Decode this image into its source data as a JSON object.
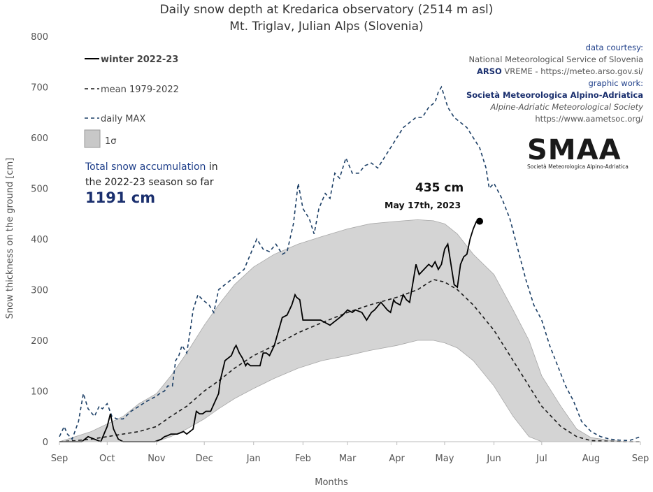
{
  "title_line1": "Daily snow depth at Kredarica observatory (2514 m asl)",
  "title_line2": "Mt. Triglav, Julian Alps  (Slovenia)",
  "credits": {
    "line1": "data courtesy:",
    "line2": "National Meteorological Service of Slovenia",
    "line3_bold": "ARSO",
    "line3_rest": " VREME - https://meteo.arso.gov.si/",
    "line4": "graphic work:",
    "line5": "Società Meteorologica Alpino-Adriatica",
    "line6": "Alpine-Adriatic Meteorological Society",
    "line7": "https://www.aametsoc.org/"
  },
  "logo": {
    "text": "SMAA",
    "subtitle": "Società Meteorologica Alpino-Adriatica"
  },
  "total": {
    "line1_blue": "Total snow accumulation",
    "line1_rest": " in",
    "line2": "the 2022-23 season so far",
    "value": "1191 cm"
  },
  "annotation": {
    "value": "435 cm",
    "date": "May 17th, 2023"
  },
  "colors": {
    "winter": "#000000",
    "mean": "#1a1a1a",
    "max": "#1c3f66",
    "band": "#d4d4d4",
    "band_stroke": "#a8a8a8"
  },
  "chart_data": {
    "type": "line",
    "title": "Daily snow depth at Kredarica observatory (2514 m asl)",
    "subtitle": "Mt. Triglav, Julian Alps  (Slovenia)",
    "xlabel": "Months",
    "ylabel": "Snow thickness on the ground [cm]",
    "ylim": [
      0,
      800
    ],
    "yticks": [
      0,
      100,
      200,
      300,
      400,
      500,
      600,
      700,
      800
    ],
    "xlim": [
      0,
      365
    ],
    "months": [
      {
        "label": "Sep",
        "day": 0
      },
      {
        "label": "Oct",
        "day": 30
      },
      {
        "label": "Nov",
        "day": 61
      },
      {
        "label": "Dec",
        "day": 91
      },
      {
        "label": "Jan",
        "day": 122
      },
      {
        "label": "Feb",
        "day": 153
      },
      {
        "label": "Mar",
        "day": 181
      },
      {
        "label": "Apr",
        "day": 212
      },
      {
        "label": "May",
        "day": 242
      },
      {
        "label": "Jun",
        "day": 273
      },
      {
        "label": "Jul",
        "day": 303
      },
      {
        "label": "Aug",
        "day": 334
      },
      {
        "label": "Sep",
        "day": 365
      }
    ],
    "legend": [
      {
        "label": "winter 2022-23",
        "style": "solid"
      },
      {
        "label": "mean 1979-2022",
        "style": "dashed"
      },
      {
        "label": "daily MAX",
        "style": "dashed"
      },
      {
        "label": "1σ",
        "style": "band"
      }
    ],
    "series": [
      {
        "name": "winter 2022-23",
        "x": [
          0,
          10,
          14,
          18,
          22,
          26,
          28,
          30,
          32,
          34,
          37,
          40,
          45,
          50,
          55,
          60,
          64,
          66,
          68,
          70,
          74,
          78,
          80,
          84,
          86,
          88,
          90,
          92,
          95,
          100,
          101,
          104,
          108,
          110,
          111,
          113,
          115,
          117,
          118,
          120,
          122,
          126,
          128,
          130,
          132,
          135,
          140,
          143,
          146,
          148,
          149,
          151,
          153,
          156,
          158,
          160,
          164,
          170,
          178,
          181,
          184,
          186,
          190,
          193,
          196,
          198,
          202,
          206,
          208,
          210,
          211,
          214,
          216,
          218,
          220,
          224,
          226,
          229,
          232,
          234,
          236,
          238,
          240,
          242,
          244,
          248,
          250,
          252,
          254,
          256,
          257,
          258,
          260,
          262,
          264,
          266
        ],
        "y": [
          0,
          0,
          0,
          10,
          5,
          0,
          15,
          30,
          55,
          25,
          5,
          0,
          0,
          0,
          0,
          0,
          5,
          10,
          12,
          15,
          15,
          20,
          15,
          25,
          60,
          55,
          55,
          60,
          60,
          95,
          120,
          160,
          170,
          185,
          190,
          175,
          165,
          150,
          155,
          150,
          150,
          150,
          175,
          175,
          170,
          190,
          245,
          250,
          270,
          290,
          285,
          280,
          240,
          240,
          240,
          240,
          240,
          230,
          250,
          260,
          255,
          260,
          255,
          240,
          255,
          260,
          275,
          260,
          255,
          280,
          275,
          270,
          290,
          280,
          275,
          350,
          330,
          340,
          350,
          345,
          355,
          340,
          350,
          380,
          390,
          310,
          305,
          350,
          365,
          370,
          385,
          400,
          420,
          435,
          null,
          null
        ]
      },
      {
        "name": "mean 1979-2022",
        "x": [
          0,
          10,
          20,
          30,
          40,
          50,
          61,
          70,
          80,
          91,
          100,
          110,
          122,
          135,
          150,
          165,
          181,
          195,
          212,
          225,
          235,
          242,
          250,
          260,
          273,
          285,
          295,
          303,
          315,
          325,
          334,
          345,
          355,
          365
        ],
        "y": [
          0,
          2,
          5,
          10,
          15,
          20,
          30,
          50,
          70,
          100,
          120,
          145,
          170,
          190,
          215,
          235,
          255,
          270,
          285,
          300,
          320,
          315,
          300,
          270,
          220,
          160,
          110,
          70,
          30,
          10,
          2,
          1,
          0,
          0
        ]
      },
      {
        "name": "daily MAX",
        "x": [
          0,
          3,
          5,
          8,
          12,
          15,
          18,
          22,
          25,
          27,
          30,
          33,
          36,
          40,
          45,
          50,
          55,
          58,
          61,
          63,
          66,
          68,
          71,
          73,
          75,
          77,
          80,
          82,
          84,
          87,
          90,
          94,
          97,
          100,
          104,
          108,
          112,
          116,
          120,
          124,
          128,
          132,
          136,
          140,
          143,
          147,
          150,
          153,
          157,
          160,
          163,
          167,
          170,
          173,
          176,
          180,
          184,
          188,
          192,
          196,
          200,
          204,
          208,
          212,
          216,
          220,
          224,
          228,
          232,
          236,
          238,
          240,
          242,
          244,
          248,
          252,
          256,
          260,
          264,
          268,
          270,
          273,
          278,
          283,
          288,
          293,
          298,
          303,
          308,
          313,
          318,
          323,
          328,
          334,
          340,
          346,
          352,
          358,
          365
        ],
        "y": [
          10,
          30,
          15,
          5,
          40,
          95,
          65,
          50,
          70,
          65,
          75,
          50,
          45,
          45,
          60,
          70,
          80,
          85,
          90,
          95,
          100,
          110,
          110,
          160,
          170,
          190,
          175,
          215,
          260,
          290,
          280,
          270,
          255,
          300,
          310,
          320,
          330,
          340,
          370,
          400,
          380,
          375,
          390,
          370,
          375,
          430,
          510,
          460,
          440,
          410,
          460,
          490,
          480,
          530,
          520,
          560,
          530,
          530,
          545,
          550,
          540,
          560,
          580,
          600,
          620,
          630,
          640,
          640,
          660,
          670,
          690,
          700,
          680,
          660,
          640,
          630,
          620,
          600,
          580,
          540,
          500,
          510,
          480,
          440,
          380,
          320,
          270,
          240,
          190,
          150,
          110,
          80,
          40,
          20,
          10,
          5,
          3,
          2,
          10
        ]
      },
      {
        "name": "1σ",
        "x": [
          0,
          10,
          20,
          30,
          40,
          50,
          61,
          70,
          80,
          91,
          100,
          110,
          122,
          135,
          150,
          165,
          181,
          195,
          212,
          225,
          235,
          242,
          250,
          260,
          273,
          285,
          295,
          303,
          315,
          325,
          334,
          345,
          355,
          365
        ],
        "upper": [
          0,
          10,
          20,
          35,
          50,
          75,
          95,
          130,
          175,
          230,
          270,
          310,
          345,
          370,
          390,
          405,
          420,
          430,
          435,
          438,
          436,
          430,
          410,
          370,
          330,
          260,
          200,
          130,
          70,
          25,
          8,
          3,
          0,
          0
        ],
        "lower": [
          0,
          0,
          0,
          0,
          0,
          0,
          0,
          10,
          25,
          45,
          65,
          85,
          105,
          125,
          145,
          160,
          170,
          180,
          190,
          200,
          200,
          195,
          185,
          160,
          110,
          50,
          10,
          0,
          0,
          0,
          0,
          0,
          0,
          0
        ]
      }
    ],
    "annotation": {
      "x": 264,
      "y": 435,
      "label": "435 cm",
      "sublabel": "May 17th, 2023"
    }
  }
}
